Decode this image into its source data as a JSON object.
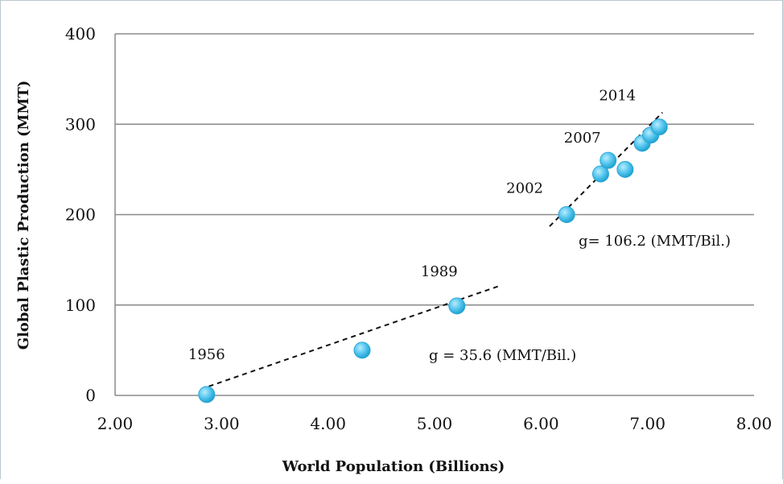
{
  "chart_data": {
    "type": "scatter",
    "title": "",
    "xlabel": "World Population (Billions)",
    "ylabel": "Global Plastic Production (MMT)",
    "xlim": [
      2.0,
      8.0
    ],
    "ylim": [
      0,
      400
    ],
    "x_ticks": [
      "2.00",
      "3.00",
      "4.00",
      "5.00",
      "6.00",
      "7.00",
      "8.00"
    ],
    "y_ticks": [
      "0",
      "100",
      "200",
      "300",
      "400"
    ],
    "grid": "horizontal",
    "legend": "none",
    "marker_color": "#4fc3ec",
    "points": [
      {
        "x": 2.86,
        "y": 1
      },
      {
        "x": 4.32,
        "y": 50
      },
      {
        "x": 5.21,
        "y": 99
      },
      {
        "x": 6.24,
        "y": 200
      },
      {
        "x": 6.56,
        "y": 245
      },
      {
        "x": 6.63,
        "y": 260
      },
      {
        "x": 6.79,
        "y": 250
      },
      {
        "x": 6.95,
        "y": 279
      },
      {
        "x": 7.03,
        "y": 288
      },
      {
        "x": 7.11,
        "y": 297
      }
    ],
    "point_labels": [
      {
        "text": "1956",
        "x": 2.86,
        "y": 1
      },
      {
        "text": "1989",
        "x": 5.21,
        "y": 99
      },
      {
        "text": "2002",
        "x": 6.24,
        "y": 200
      },
      {
        "text": "2007",
        "x": 6.63,
        "y": 260
      },
      {
        "text": "2014",
        "x": 7.11,
        "y": 297
      }
    ],
    "trend_lines": [
      {
        "x": [
          2.88,
          5.63
        ],
        "y": [
          10,
          122
        ],
        "label": "g = 35.6 (MMT/Bil.)"
      },
      {
        "x": [
          6.08,
          7.14
        ],
        "y": [
          187,
          313
        ],
        "label": "g= 106.2 (MMT/Bil.)"
      }
    ]
  }
}
